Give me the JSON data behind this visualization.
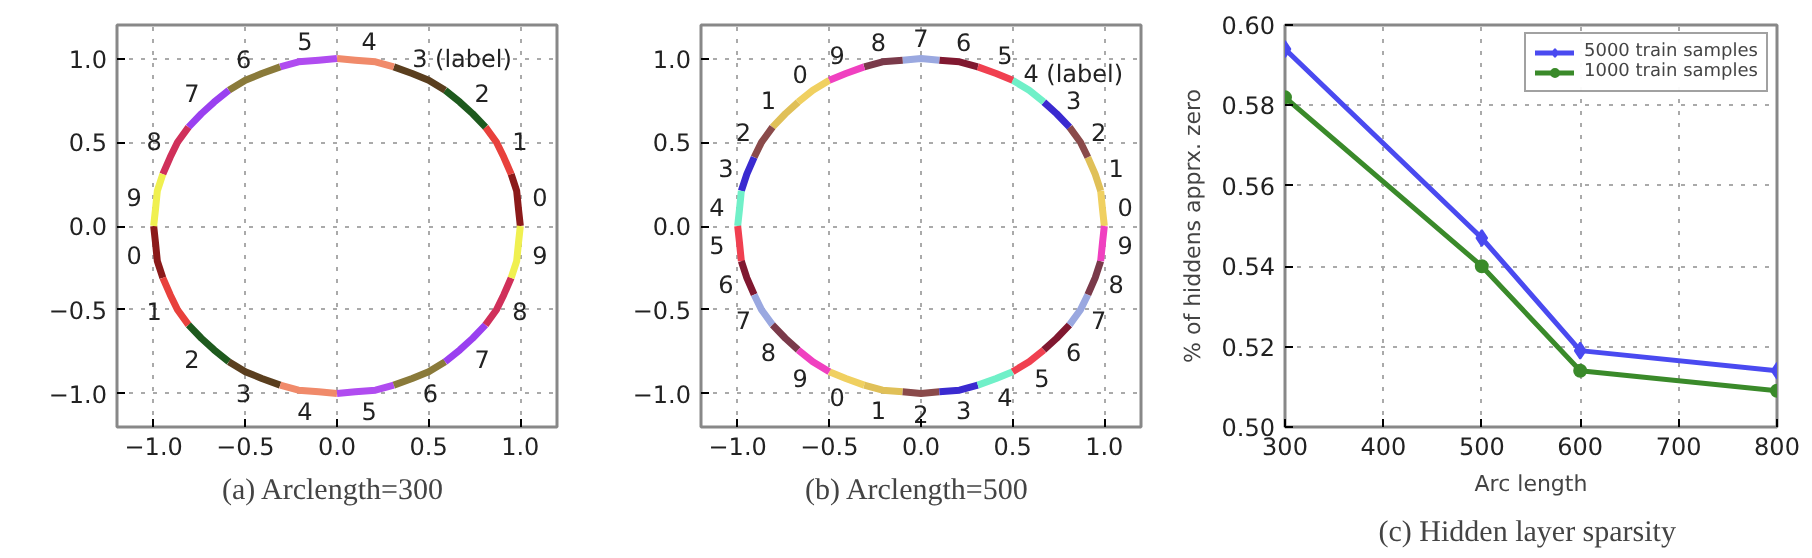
{
  "chart_data": [
    {
      "type": "line",
      "title": "(a)  Arclength=300",
      "xlim": [
        -1.2,
        1.2
      ],
      "ylim": [
        -1.2,
        1.2
      ],
      "xticks": [
        {
          "value": -1,
          "label": "−1.0"
        },
        {
          "value": -0.5,
          "label": "−0.5"
        },
        {
          "value": 0,
          "label": "0.0"
        },
        {
          "value": 0.5,
          "label": "0.5"
        },
        {
          "value": 1,
          "label": "1.0"
        }
      ],
      "yticks": [
        {
          "value": -1,
          "label": "−1.0"
        },
        {
          "value": -0.5,
          "label": "−0.5"
        },
        {
          "value": 0,
          "label": "0.0"
        },
        {
          "value": 0.5,
          "label": "0.5"
        },
        {
          "value": 1,
          "label": "1.0"
        }
      ],
      "grid": true,
      "legend": false,
      "marker": "none",
      "line_style": "solid",
      "series": [
        {
          "color": "#8b1a1a",
          "x": [
            0.95,
            0.98,
            0.99,
            1,
            null,
            -0.95,
            -0.98,
            -0.99,
            -1
          ],
          "values": [
            0.31,
            0.21,
            0.1,
            0,
            null,
            -0.31,
            -0.21,
            -0.1,
            0
          ]
        },
        {
          "color": "#e8413c",
          "x": [
            0.81,
            0.87,
            0.91,
            0.95,
            null,
            -0.81,
            -0.87,
            -0.91,
            -0.95
          ],
          "values": [
            0.59,
            0.5,
            0.41,
            0.31,
            null,
            -0.59,
            -0.5,
            -0.41,
            -0.31
          ]
        },
        {
          "color": "#1e5a1e",
          "x": [
            0.59,
            0.67,
            0.74,
            0.81,
            null,
            -0.59,
            -0.67,
            -0.74,
            -0.81
          ],
          "values": [
            0.81,
            0.74,
            0.67,
            0.59,
            null,
            -0.81,
            -0.74,
            -0.67,
            -0.59
          ]
        },
        {
          "color": "#5a3e1e",
          "x": [
            0.31,
            0.41,
            0.5,
            0.59,
            null,
            -0.31,
            -0.41,
            -0.5,
            -0.59
          ],
          "values": [
            0.95,
            0.91,
            0.87,
            0.81,
            null,
            -0.95,
            -0.91,
            -0.87,
            -0.81
          ]
        },
        {
          "color": "#f08a6a",
          "x": [
            0,
            0.1,
            0.21,
            0.31,
            null,
            0,
            -0.1,
            -0.21,
            -0.31
          ],
          "values": [
            1,
            0.99,
            0.98,
            0.95,
            null,
            -1,
            -0.99,
            -0.98,
            -0.95
          ]
        },
        {
          "color": "#b04cf0",
          "x": [
            0.31,
            0.21,
            0.1,
            0,
            null,
            -0.31,
            -0.21,
            -0.1,
            0
          ],
          "values": [
            -0.95,
            -0.98,
            -0.99,
            -1,
            null,
            0.95,
            0.98,
            0.99,
            1
          ]
        },
        {
          "color": "#8a7a3a",
          "x": [
            0.59,
            0.5,
            0.41,
            0.31,
            null,
            -0.59,
            -0.5,
            -0.41,
            -0.31
          ],
          "values": [
            -0.81,
            -0.87,
            -0.91,
            -0.95,
            null,
            0.81,
            0.87,
            0.91,
            0.95
          ]
        },
        {
          "color": "#9a40f0",
          "x": [
            0.81,
            0.74,
            0.67,
            0.59,
            null,
            -0.81,
            -0.74,
            -0.67,
            -0.59
          ],
          "values": [
            -0.59,
            -0.67,
            -0.74,
            -0.81,
            null,
            0.59,
            0.67,
            0.74,
            0.81
          ]
        },
        {
          "color": "#d0305a",
          "x": [
            0.95,
            0.91,
            0.87,
            0.81,
            null,
            -0.95,
            -0.91,
            -0.87,
            -0.81
          ],
          "values": [
            -0.31,
            -0.41,
            -0.5,
            -0.59,
            null,
            0.31,
            0.41,
            0.5,
            0.59
          ]
        },
        {
          "color": "#f0f050",
          "x": [
            1,
            0.99,
            0.98,
            0.95,
            null,
            -1,
            -0.99,
            -0.98,
            -0.95
          ],
          "values": [
            0,
            -0.1,
            -0.21,
            -0.31,
            null,
            0,
            0.1,
            0.21,
            0.31
          ]
        }
      ],
      "annotations": [
        "0",
        "0",
        "1",
        "1",
        "2",
        "2",
        "3 (label)",
        "3",
        "4",
        "4",
        "5",
        "5",
        "6",
        "6",
        "7",
        "7",
        "8",
        "8",
        "9",
        "9"
      ]
    },
    {
      "type": "line",
      "title": "(b)  Arclength=500",
      "xlim": [
        -1.2,
        1.2
      ],
      "ylim": [
        -1.2,
        1.2
      ],
      "xticks": [
        {
          "value": -1,
          "label": "−1.0"
        },
        {
          "value": -0.5,
          "label": "−0.5"
        },
        {
          "value": 0,
          "label": "0.0"
        },
        {
          "value": 0.5,
          "label": "0.5"
        },
        {
          "value": 1,
          "label": "1.0"
        }
      ],
      "yticks": [
        {
          "value": -1,
          "label": "−1.0"
        },
        {
          "value": -0.5,
          "label": "−0.5"
        },
        {
          "value": 0,
          "label": "0.0"
        },
        {
          "value": 0.5,
          "label": "0.5"
        },
        {
          "value": 1,
          "label": "1.0"
        }
      ],
      "grid": true,
      "legend": false,
      "marker": "none",
      "line_style": "solid",
      "series": [
        {
          "color": "#f0d060",
          "x": [
            0.98,
            0.99,
            1,
            null,
            -0.31,
            -0.41,
            -0.5,
            null,
            -0.67,
            -0.59,
            -0.5
          ],
          "values": [
            0.21,
            0.1,
            0,
            null,
            -0.95,
            -0.91,
            -0.87,
            null,
            0.74,
            0.81,
            0.87
          ]
        },
        {
          "color": "#e0c058",
          "x": [
            0.91,
            0.95,
            0.98,
            null,
            -0.1,
            -0.21,
            -0.31,
            null,
            -0.81,
            -0.74,
            -0.67
          ],
          "values": [
            0.41,
            0.31,
            0.21,
            null,
            -0.99,
            -0.98,
            -0.95,
            null,
            0.59,
            0.67,
            0.74
          ]
        },
        {
          "color": "#8a4a4a",
          "x": [
            0.81,
            0.87,
            0.91,
            null,
            0.1,
            0,
            -0.1,
            null,
            -0.91,
            -0.87,
            -0.81
          ],
          "values": [
            0.59,
            0.5,
            0.41,
            null,
            -0.99,
            -1,
            -0.99,
            null,
            0.41,
            0.5,
            0.59
          ]
        },
        {
          "color": "#3a2ad0",
          "x": [
            0.67,
            0.74,
            0.81,
            null,
            0.31,
            0.21,
            0.1,
            null,
            -0.98,
            -0.95,
            -0.91
          ],
          "values": [
            0.74,
            0.67,
            0.59,
            null,
            -0.95,
            -0.98,
            -0.99,
            null,
            0.21,
            0.31,
            0.41
          ]
        },
        {
          "color": "#70f0c8",
          "x": [
            0.5,
            0.59,
            0.67,
            null,
            0.5,
            0.41,
            0.31,
            null,
            -1,
            -0.99,
            -0.98
          ],
          "values": [
            0.87,
            0.81,
            0.74,
            null,
            -0.87,
            -0.91,
            -0.95,
            null,
            0,
            0.1,
            0.21
          ]
        },
        {
          "color": "#f04050",
          "x": [
            0.31,
            0.41,
            0.5,
            null,
            0.67,
            0.59,
            0.5,
            null,
            -0.98,
            -0.99,
            -1
          ],
          "values": [
            0.95,
            0.91,
            0.87,
            null,
            -0.74,
            -0.81,
            -0.87,
            null,
            -0.21,
            -0.1,
            0
          ]
        },
        {
          "color": "#801830",
          "x": [
            0.1,
            0.21,
            0.31,
            null,
            0.81,
            0.74,
            0.67,
            null,
            -0.91,
            -0.95,
            -0.98
          ],
          "values": [
            0.99,
            0.98,
            0.95,
            null,
            -0.59,
            -0.67,
            -0.74,
            null,
            -0.41,
            -0.31,
            -0.21
          ]
        },
        {
          "color": "#9aa8e0",
          "x": [
            -0.1,
            0,
            0.1,
            null,
            0.91,
            0.87,
            0.81,
            null,
            -0.81,
            -0.87,
            -0.91
          ],
          "values": [
            0.99,
            1,
            0.99,
            null,
            -0.41,
            -0.5,
            -0.59,
            null,
            -0.59,
            -0.5,
            -0.41
          ]
        },
        {
          "color": "#7a3a4a",
          "x": [
            0.98,
            0.95,
            0.91,
            null,
            -0.67,
            -0.74,
            -0.81,
            null,
            -0.31,
            -0.21,
            -0.1
          ],
          "values": [
            -0.21,
            -0.31,
            -0.41,
            null,
            -0.74,
            -0.67,
            -0.59,
            null,
            0.95,
            0.98,
            0.99
          ]
        },
        {
          "color": "#f040c0",
          "x": [
            1,
            0.99,
            0.98,
            null,
            -0.5,
            -0.59,
            -0.67,
            null,
            -0.5,
            -0.41,
            -0.31
          ],
          "values": [
            0,
            -0.1,
            -0.21,
            null,
            -0.87,
            -0.81,
            -0.74,
            null,
            0.87,
            0.91,
            0.95
          ]
        }
      ],
      "annotations": [
        "0",
        "0",
        "0",
        "1",
        "1",
        "1",
        "2",
        "2",
        "2",
        "3",
        "3",
        "3",
        "4 (label)",
        "4",
        "4",
        "5",
        "5",
        "5",
        "6",
        "6",
        "6",
        "7",
        "7",
        "7",
        "8",
        "8",
        "8",
        "9",
        "9",
        "9"
      ]
    },
    {
      "type": "line",
      "title": "(c)  Hidden layer sparsity",
      "xlabel": "Arc length",
      "ylabel": "% of hiddens apprx. zero",
      "x": [
        300,
        500,
        600,
        800
      ],
      "xlim": [
        300,
        800
      ],
      "xticks": [
        300,
        400,
        500,
        600,
        700,
        800
      ],
      "ylim": [
        0.5,
        0.6
      ],
      "yticks": [
        {
          "value": 0.5,
          "label": "0.50"
        },
        0.52,
        0.54,
        0.56,
        0.58,
        {
          "value": 0.6,
          "label": "0.60"
        }
      ],
      "grid": true,
      "legend": "top right",
      "line_style": "solid",
      "series": [
        {
          "name": "5000 train samples",
          "color": "#4a4af0",
          "marker": "diamond",
          "values": [
            0.594,
            0.547,
            0.519,
            0.514
          ]
        },
        {
          "name": "1000 train samples",
          "color": "#3a8a2a",
          "marker": "circle",
          "values": [
            0.582,
            0.54,
            0.514,
            0.509
          ]
        }
      ]
    }
  ]
}
